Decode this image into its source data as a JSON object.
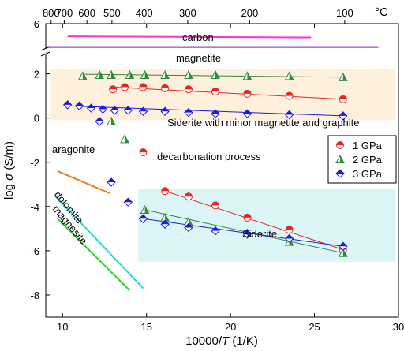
{
  "chart_data": {
    "type": "scatter",
    "xlabel_pre": "10000/",
    "xlabel_italic": "T",
    "xlabel_post": " (1/K)",
    "ylabel_pre": "log ",
    "ylabel_sym": "σ",
    "ylabel_post": " (S/m)",
    "top_axis_unit": "°C",
    "xlim": [
      9,
      30
    ],
    "ylim": [
      -9,
      6.5
    ],
    "x_ticks": [
      "10",
      "15",
      "20",
      "25",
      "30"
    ],
    "y_ticks": [
      "6",
      "2",
      "0",
      "-2",
      "-4",
      "-6",
      "-8"
    ],
    "top_ticks": [
      "800",
      "700",
      "600",
      "500",
      "400",
      "300",
      "200",
      "100"
    ],
    "region_labels": {
      "carbon": "carbon",
      "magnetite": "magnetite",
      "siderite_minor": "Siderite with minor magnetite and graphite",
      "decarbonation": "decarbonation process",
      "aragonite": "aragonite",
      "dolomite": "dolomite",
      "magnesite": "magnesite",
      "siderite": "Siderite"
    },
    "legend": [
      "1 GPa",
      "2 GPa",
      "3 GPa"
    ],
    "colors": {
      "gpa1": "#e8261e",
      "gpa2": "#2e8b3a",
      "gpa3": "#1a1ae6",
      "carbon": "#ff2fd0",
      "magnetite": "#8a1fc0",
      "aragonite": "#f07a1e",
      "dolomite": "#22d6e6",
      "magnesite": "#2ed62e",
      "band_top": "#fdf0dc",
      "band_bottom": "#dcf5f7"
    },
    "series": [
      {
        "name": "1 GPa",
        "x": [
          13.0,
          13.7,
          14.8,
          16.1,
          17.5,
          19.1,
          21.0,
          23.5,
          26.7
        ],
        "y": [
          1.3,
          1.4,
          1.4,
          1.35,
          1.3,
          1.2,
          1.1,
          1.0,
          0.85
        ]
      },
      {
        "name": "2 GPa",
        "x": [
          11.2,
          12.2,
          12.9,
          14.0,
          14.9,
          16.1,
          17.5,
          19.1,
          21.0,
          23.5,
          26.7
        ],
        "y": [
          1.9,
          1.95,
          1.95,
          1.95,
          1.95,
          1.95,
          1.95,
          1.95,
          1.9,
          1.9,
          1.85
        ]
      },
      {
        "name": "3 GPa",
        "x": [
          10.3,
          11.0,
          11.7,
          12.4,
          13.1,
          13.9,
          14.8,
          16.1,
          17.5,
          19.1,
          21.0,
          23.5,
          26.7
        ],
        "y": [
          0.6,
          0.55,
          0.45,
          0.4,
          0.35,
          0.35,
          0.3,
          0.3,
          0.25,
          0.2,
          0.2,
          0.15,
          0.1
        ]
      },
      {
        "name": "1 GPa",
        "x": [
          14.8,
          16.1,
          17.5,
          19.1,
          21.0,
          23.5,
          26.7
        ],
        "y": [
          -1.55,
          -3.3,
          -3.55,
          -3.95,
          -4.5,
          -5.05,
          -5.95
        ]
      },
      {
        "name": "2 GPa",
        "x": [
          12.9,
          13.7,
          14.9,
          16.1,
          17.5,
          21.0,
          23.5,
          26.7
        ],
        "y": [
          -0.15,
          -0.95,
          -4.15,
          -4.5,
          -4.7,
          -5.2,
          -5.6,
          -6.1
        ]
      },
      {
        "name": "3 GPa",
        "x": [
          12.2,
          12.9,
          13.9,
          14.8,
          16.1,
          17.5,
          19.1,
          21.0,
          23.5,
          26.7
        ],
        "y": [
          -0.15,
          -2.9,
          -3.8,
          -4.55,
          -4.8,
          -4.95,
          -5.1,
          -5.25,
          -5.45,
          -5.8
        ]
      }
    ],
    "top_tick_x": [
      9.32,
      10.1,
      11.45,
      12.94,
      14.86,
      17.45,
      21.14,
      26.8
    ],
    "fit_lines": [
      {
        "series": 0,
        "x": [
          13.0,
          26.7
        ],
        "y": [
          1.4,
          0.85
        ]
      },
      {
        "series": 1,
        "x": [
          11.2,
          26.7
        ],
        "y": [
          1.98,
          1.85
        ]
      },
      {
        "series": 2,
        "x": [
          10.3,
          26.7
        ],
        "y": [
          0.55,
          0.1
        ]
      },
      {
        "series": 0,
        "x": [
          16.1,
          26.7
        ],
        "y": [
          -3.3,
          -5.95
        ]
      },
      {
        "series": 1,
        "x": [
          14.9,
          26.7
        ],
        "y": [
          -4.15,
          -6.1
        ]
      },
      {
        "series": 2,
        "x": [
          14.8,
          26.7
        ],
        "y": [
          -4.55,
          -5.8
        ]
      }
    ],
    "reference_lines": [
      {
        "label": "carbon",
        "x": [
          10.3,
          24.8
        ],
        "y": [
          5.3,
          5.2
        ]
      },
      {
        "label": "magnetite",
        "x": [
          9.0,
          28.8
        ],
        "y": [
          4.3,
          4.3
        ]
      },
      {
        "label": "aragonite",
        "x": [
          9.7,
          12.8
        ],
        "y": [
          -2.4,
          -3.4
        ]
      },
      {
        "label": "dolomite",
        "x": [
          9.6,
          14.8
        ],
        "y": [
          -3.55,
          -7.7
        ]
      },
      {
        "label": "magnesite",
        "x": [
          9.7,
          14.0
        ],
        "y": [
          -4.55,
          -7.8
        ]
      }
    ],
    "bands": [
      {
        "x": [
          9.3,
          30
        ],
        "y": [
          -0.1,
          2.2
        ]
      },
      {
        "x": [
          14.5,
          30
        ],
        "y": [
          -6.5,
          -3.2
        ]
      }
    ]
  }
}
